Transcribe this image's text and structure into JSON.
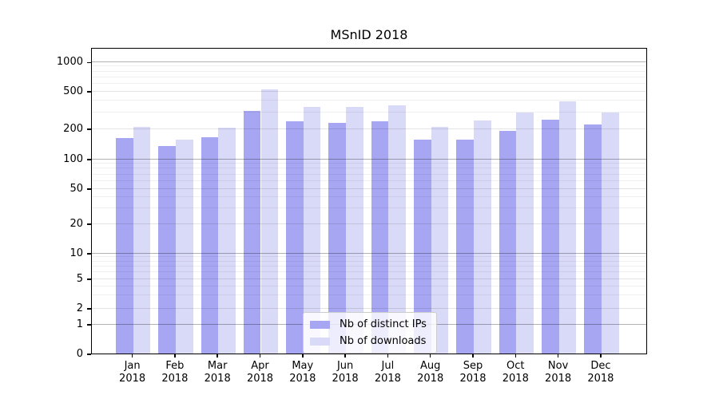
{
  "chart_data": {
    "type": "bar",
    "title": "MSnID 2018",
    "months": [
      "Jan",
      "Feb",
      "Mar",
      "Apr",
      "May",
      "Jun",
      "Jul",
      "Aug",
      "Sep",
      "Oct",
      "Nov",
      "Dec"
    ],
    "year": "2018",
    "categories": [
      "Jan 2018",
      "Feb 2018",
      "Mar 2018",
      "Apr 2018",
      "May 2018",
      "Jun 2018",
      "Jul 2018",
      "Aug 2018",
      "Sep 2018",
      "Oct 2018",
      "Nov 2018",
      "Dec 2018"
    ],
    "series": [
      {
        "name": "Nb of distinct IPs",
        "color": "#a6a6f3",
        "values": [
          160,
          135,
          165,
          305,
          240,
          230,
          240,
          155,
          155,
          190,
          250,
          220
        ]
      },
      {
        "name": "Nb of downloads",
        "color": "#d9d9f8",
        "values": [
          210,
          155,
          205,
          515,
          340,
          340,
          350,
          210,
          245,
          295,
          390,
          295
        ]
      }
    ],
    "y_ticks": [
      0,
      1,
      2,
      5,
      10,
      20,
      50,
      100,
      200,
      500,
      1000
    ],
    "y_scale": "symlog",
    "ylim": [
      0,
      1250
    ],
    "grid": "on",
    "legend_position": "lower center",
    "colors": {
      "background": "#ffffff",
      "spine": "#000000",
      "grid_major": "rgba(0,0,0,0.30)",
      "grid_mid": "rgba(0,0,0,0.11)",
      "grid_minor": "rgba(0,0,0,0.06)"
    }
  }
}
